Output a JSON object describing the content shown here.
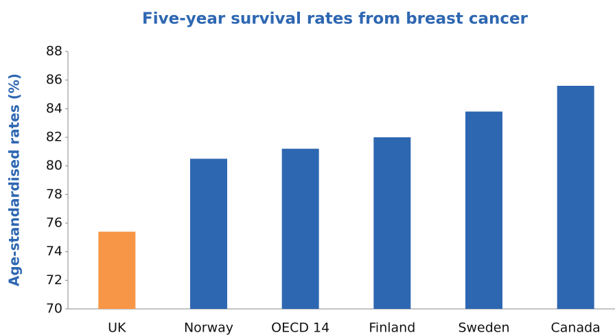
{
  "chart_data": {
    "type": "bar",
    "title": "Five-year survival rates from breast cancer",
    "y_label": "Age-standardised rates (%)",
    "categories": [
      "UK",
      "Norway",
      "OECD 14",
      "Finland",
      "Sweden",
      "Canada"
    ],
    "values": [
      75.4,
      80.5,
      81.2,
      82.0,
      83.8,
      85.6
    ],
    "colors": [
      "#f79646",
      "#2e67b1",
      "#2e67b1",
      "#2e67b1",
      "#2e67b1",
      "#2e67b1"
    ],
    "ylim": [
      70,
      88
    ],
    "yticks": [
      70,
      72,
      74,
      76,
      78,
      80,
      82,
      84,
      86,
      88
    ],
    "grid": false
  }
}
